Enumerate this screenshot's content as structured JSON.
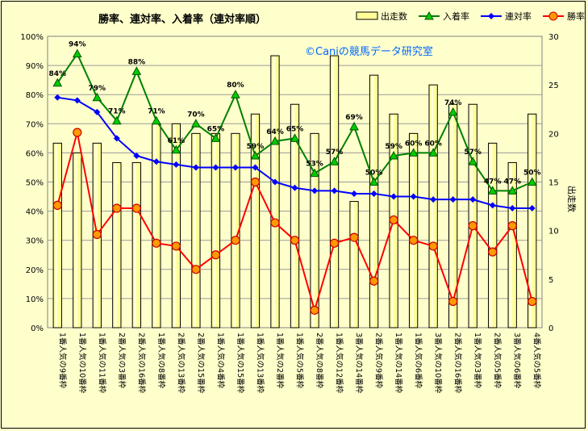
{
  "chart_data": {
    "type": "bar",
    "title": "勝率、連対率、入着率（連対率順）",
    "watermark": "©Caniの競馬データ研究室",
    "y2label": "出走数",
    "ylim": [
      0,
      100
    ],
    "y2lim": [
      0,
      30
    ],
    "grid": true,
    "legend_position": "top-right",
    "categories": [
      "1番人気の9番枠",
      "1番人気の10番枠",
      "1番人気の11番枠",
      "2番人気の3番枠",
      "2番人気の16番枠",
      "1番人気の8番枠",
      "2番人気の13番枠",
      "2番人気の15番枠",
      "1番人気の4番枠",
      "1番人気の15番枠",
      "1番人気の13番枠",
      "1番人気の2番枠",
      "1番人気の5番枠",
      "2番人気の8番枠",
      "1番人気の12番枠",
      "3番人気の14番枠",
      "2番人気の9番枠",
      "1番人気の14番枠",
      "1番人気の6番枠",
      "3番人気の10番枠",
      "2番人気の16番枠",
      "1番人気の3番枠",
      "2番人気の5番枠",
      "3番人気の6番枠",
      "4番人気の5番枠"
    ],
    "series": [
      {
        "name": "出走数",
        "kind": "bar",
        "axis": "right",
        "color": "#ffff99",
        "values": [
          19,
          18,
          19,
          17,
          17,
          21,
          21,
          20,
          20,
          20,
          22,
          28,
          23,
          20,
          28,
          13,
          26,
          22,
          20,
          25,
          23,
          23,
          19,
          17,
          22
        ]
      },
      {
        "name": "入着率",
        "kind": "line",
        "axis": "left",
        "color": "#008000",
        "values": [
          84,
          94,
          79,
          71,
          88,
          71,
          61,
          70,
          65,
          80,
          59,
          64,
          65,
          53,
          57,
          69,
          50,
          59,
          60,
          60,
          74,
          57,
          47,
          47,
          50
        ]
      },
      {
        "name": "連対率",
        "kind": "line",
        "axis": "left",
        "color": "#0000ff",
        "values": [
          79,
          78,
          74,
          65,
          59,
          57,
          56,
          55,
          55,
          55,
          55,
          50,
          48,
          47,
          47,
          46,
          46,
          45,
          45,
          44,
          44,
          44,
          42,
          41,
          41
        ]
      },
      {
        "name": "勝率",
        "kind": "line",
        "axis": "left",
        "color": "#ff0000",
        "values": [
          42,
          67,
          32,
          41,
          41,
          29,
          28,
          20,
          25,
          30,
          50,
          36,
          30,
          6,
          29,
          31,
          16,
          37,
          30,
          28,
          9,
          35,
          26,
          35,
          9
        ]
      }
    ],
    "label_texts": [
      "84%",
      "94%",
      "79%",
      "71%",
      "88%",
      "71%",
      "61%",
      "70%",
      "65%",
      "80%",
      "59%",
      "64%",
      "65%",
      "53%",
      "57%",
      "69%",
      "50%",
      "59%",
      "60%",
      "60%",
      "74%",
      "57%",
      "47%",
      "47%",
      "50%"
    ]
  }
}
